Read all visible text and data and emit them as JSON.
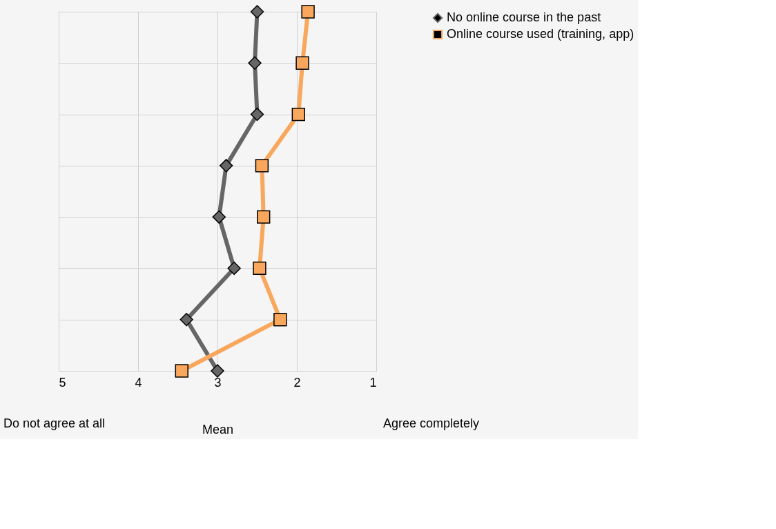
{
  "chart_data": {
    "type": "line",
    "orientation": "horizontal",
    "xlabel": "Mean",
    "annotations": [
      "Do not agree at all",
      "Agree completely"
    ],
    "categories": [
      null,
      null,
      null,
      null,
      null,
      null,
      null,
      null
    ],
    "series": [
      {
        "name": "No online course in the past",
        "color": "#666666",
        "marker": "diamond",
        "values": [
          2.5,
          2.53,
          2.5,
          2.89,
          2.98,
          2.79,
          3.39,
          3.0
        ]
      },
      {
        "name": "Online course used (training, app)",
        "color": "#f9a75c",
        "marker": "square",
        "values": [
          1.86,
          1.93,
          1.98,
          2.44,
          2.42,
          2.47,
          2.21,
          3.45
        ]
      }
    ],
    "xlim": [
      5,
      1
    ],
    "xticks": [
      5,
      4,
      3,
      2,
      1
    ],
    "grid": true,
    "legend": "right",
    "line_style": "solid"
  }
}
